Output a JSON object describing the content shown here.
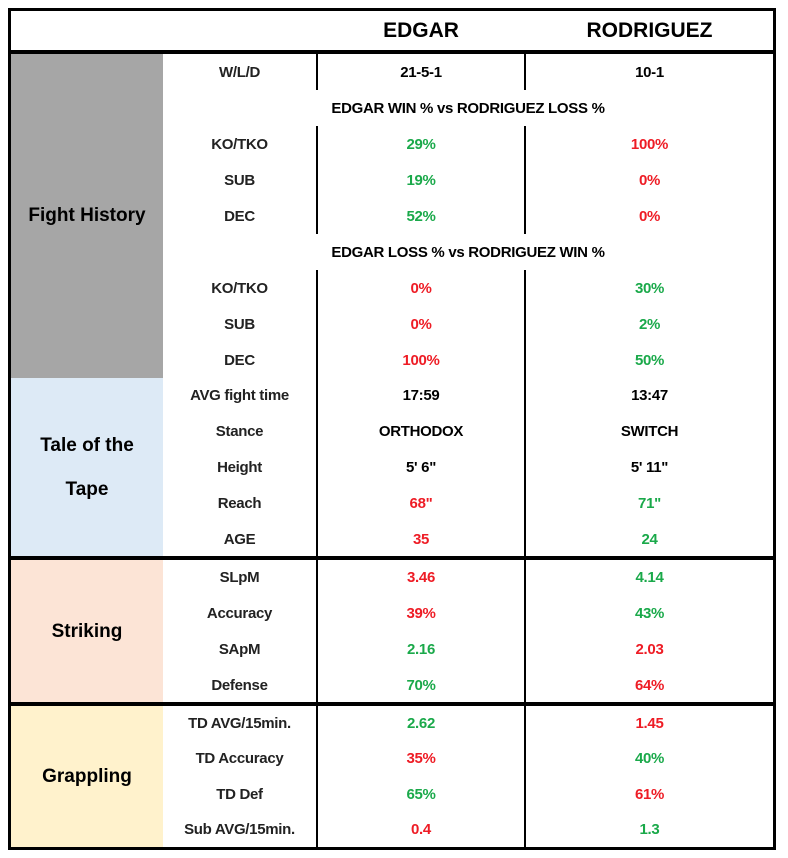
{
  "header": {
    "fighter1": "EDGAR",
    "fighter2": "RODRIGUEZ"
  },
  "colors": {
    "green": "#1aa94a",
    "red": "#ee1c25",
    "fight_history_bg": "#a6a6a6",
    "tale_bg": "#ddeaf6",
    "striking_bg": "#fce4d6",
    "grappling_bg": "#fff2cc"
  },
  "sections": [
    {
      "title": "Fight History",
      "bg": "#a6a6a6",
      "rows": [
        {
          "label": "W/L/D",
          "edgar": "21-5-1",
          "edgar_color": "black",
          "rodriguez": "10-1",
          "rodriguez_color": "black"
        },
        {
          "subheader": "EDGAR WIN % vs RODRIGUEZ LOSS %"
        },
        {
          "label": "KO/TKO",
          "edgar": "29%",
          "edgar_color": "green",
          "rodriguez": "100%",
          "rodriguez_color": "red"
        },
        {
          "label": "SUB",
          "edgar": "19%",
          "edgar_color": "green",
          "rodriguez": "0%",
          "rodriguez_color": "red"
        },
        {
          "label": "DEC",
          "edgar": "52%",
          "edgar_color": "green",
          "rodriguez": "0%",
          "rodriguez_color": "red"
        },
        {
          "subheader": "EDGAR LOSS % vs RODRIGUEZ WIN %"
        },
        {
          "label": "KO/TKO",
          "edgar": "0%",
          "edgar_color": "red",
          "rodriguez": "30%",
          "rodriguez_color": "green"
        },
        {
          "label": "SUB",
          "edgar": "0%",
          "edgar_color": "red",
          "rodriguez": "2%",
          "rodriguez_color": "green"
        },
        {
          "label": "DEC",
          "edgar": "100%",
          "edgar_color": "red",
          "rodriguez": "50%",
          "rodriguez_color": "green"
        }
      ]
    },
    {
      "title": "Tale of the Tape",
      "bg": "#ddeaf6",
      "rows": [
        {
          "label": "AVG fight time",
          "edgar": "17:59",
          "edgar_color": "black",
          "rodriguez": "13:47",
          "rodriguez_color": "black"
        },
        {
          "label": "Stance",
          "edgar": "ORTHODOX",
          "edgar_color": "black",
          "rodriguez": "SWITCH",
          "rodriguez_color": "black"
        },
        {
          "label": "Height",
          "edgar": "5' 6\"",
          "edgar_color": "black",
          "rodriguez": "5' 11\"",
          "rodriguez_color": "black"
        },
        {
          "label": "Reach",
          "edgar": "68\"",
          "edgar_color": "red",
          "rodriguez": "71\"",
          "rodriguez_color": "green"
        },
        {
          "label": "AGE",
          "edgar": "35",
          "edgar_color": "red",
          "rodriguez": "24",
          "rodriguez_color": "green"
        }
      ]
    },
    {
      "title": "Striking",
      "bg": "#fce4d6",
      "rows": [
        {
          "label": "SLpM",
          "edgar": "3.46",
          "edgar_color": "red",
          "rodriguez": "4.14",
          "rodriguez_color": "green"
        },
        {
          "label": "Accuracy",
          "edgar": "39%",
          "edgar_color": "red",
          "rodriguez": "43%",
          "rodriguez_color": "green"
        },
        {
          "label": "SApM",
          "edgar": "2.16",
          "edgar_color": "green",
          "rodriguez": "2.03",
          "rodriguez_color": "red"
        },
        {
          "label": "Defense",
          "edgar": "70%",
          "edgar_color": "green",
          "rodriguez": "64%",
          "rodriguez_color": "red"
        }
      ]
    },
    {
      "title": "Grappling",
      "bg": "#fff2cc",
      "rows": [
        {
          "label": "TD AVG/15min.",
          "edgar": "2.62",
          "edgar_color": "green",
          "rodriguez": "1.45",
          "rodriguez_color": "red"
        },
        {
          "label": "TD Accuracy",
          "edgar": "35%",
          "edgar_color": "red",
          "rodriguez": "40%",
          "rodriguez_color": "green"
        },
        {
          "label": "TD Def",
          "edgar": "65%",
          "edgar_color": "green",
          "rodriguez": "61%",
          "rodriguez_color": "red"
        },
        {
          "label": "Sub AVG/15min.",
          "edgar": "0.4",
          "edgar_color": "red",
          "rodriguez": "1.3",
          "rodriguez_color": "green"
        }
      ]
    }
  ]
}
